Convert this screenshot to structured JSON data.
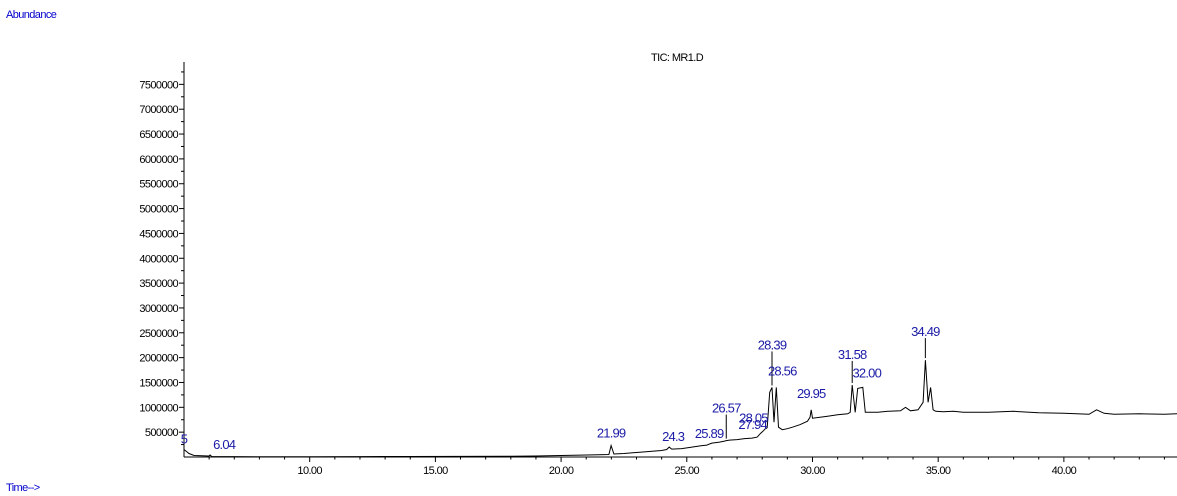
{
  "chart_data": {
    "type": "line",
    "title": "TIC: MR1.D",
    "ylabel": "Abundance",
    "xlabel": "Time-->",
    "xlim": [
      5.0,
      44.5
    ],
    "ylim": [
      0,
      7950000
    ],
    "grid": false,
    "yticks": [
      500000,
      1000000,
      1500000,
      2000000,
      2500000,
      3000000,
      3500000,
      4000000,
      4500000,
      5000000,
      5500000,
      6000000,
      6500000,
      7000000,
      7500000
    ],
    "ytick_labels": [
      "500000",
      "1000000",
      "1500000",
      "2000000",
      "2500000",
      "3000000",
      "3500000",
      "4000000",
      "4500000",
      "5000000",
      "5500000",
      "6000000",
      "6500000",
      "7000000",
      "7500000"
    ],
    "xticks": [
      10,
      15,
      20,
      25,
      30,
      35,
      40
    ],
    "xtick_labels": [
      "10.00",
      "15.00",
      "20.00",
      "25.00",
      "30.00",
      "35.00",
      "40.00"
    ],
    "series": [
      {
        "x": [
          5.0,
          5.1,
          5.2,
          5.4,
          6.0,
          6.04,
          6.1,
          8,
          10,
          12,
          14,
          16,
          18,
          19,
          20,
          21,
          21.5,
          21.9,
          21.99,
          22.1,
          22.5,
          23,
          23.5,
          24,
          24.2,
          24.3,
          24.4,
          24.8,
          25.2,
          25.6,
          25.8,
          25.89,
          26.0,
          26.3,
          26.5,
          26.57,
          26.7,
          27.0,
          27.3,
          27.6,
          27.8,
          27.94,
          28.05,
          28.1,
          28.2,
          28.3,
          28.39,
          28.47,
          28.56,
          28.65,
          28.8,
          29.0,
          29.2,
          29.5,
          29.8,
          29.9,
          29.95,
          30.0,
          30.3,
          30.6,
          31.0,
          31.4,
          31.5,
          31.58,
          31.7,
          31.8,
          32.0,
          32.1,
          32.3,
          32.6,
          33.0,
          33.5,
          33.7,
          33.9,
          34.2,
          34.4,
          34.49,
          34.6,
          34.7,
          34.8,
          34.9,
          35.2,
          35.6,
          36,
          37,
          38,
          39,
          40,
          41,
          41.3,
          41.6,
          42,
          43,
          44,
          44.5
        ],
        "values": [
          150000,
          110000,
          70000,
          30000,
          20000,
          40000,
          10000,
          5000,
          5000,
          8000,
          10000,
          12000,
          15000,
          20000,
          30000,
          40000,
          45000,
          50000,
          230000,
          60000,
          70000,
          90000,
          110000,
          130000,
          150000,
          200000,
          160000,
          170000,
          200000,
          230000,
          240000,
          260000,
          280000,
          300000,
          320000,
          330000,
          340000,
          350000,
          370000,
          380000,
          400000,
          480000,
          530000,
          560000,
          590000,
          1300000,
          1400000,
          700000,
          1400000,
          600000,
          550000,
          570000,
          600000,
          650000,
          720000,
          800000,
          950000,
          780000,
          800000,
          820000,
          850000,
          870000,
          900000,
          1450000,
          900000,
          1380000,
          1400000,
          900000,
          900000,
          900000,
          920000,
          930000,
          1000000,
          930000,
          950000,
          1100000,
          1950000,
          1100000,
          1400000,
          950000,
          920000,
          910000,
          920000,
          900000,
          900000,
          920000,
          890000,
          880000,
          860000,
          950000,
          880000,
          860000,
          870000,
          860000,
          870000
        ]
      }
    ],
    "peak_labels": [
      {
        "time": 5.0,
        "label": "5",
        "clipped": true
      },
      {
        "time": 6.04,
        "label": "6.04"
      },
      {
        "time": 21.99,
        "label": "21.99"
      },
      {
        "time": 24.3,
        "label": "24.3",
        "clipped": true
      },
      {
        "time": 25.89,
        "label": "25.89"
      },
      {
        "time": 26.57,
        "label": "26.57"
      },
      {
        "time": 27.94,
        "label": "27.94"
      },
      {
        "time": 28.05,
        "label": "28.05"
      },
      {
        "time": 28.39,
        "label": "28.39"
      },
      {
        "time": 28.56,
        "label": "28.56"
      },
      {
        "time": 29.95,
        "label": "29.95"
      },
      {
        "time": 31.58,
        "label": "31.58"
      },
      {
        "time": 32.0,
        "label": "32.00"
      },
      {
        "time": 34.49,
        "label": "34.49"
      }
    ],
    "colors": {
      "trace": "#000000",
      "baseline_marks": "#cc0000",
      "peak_label": "#1a1aa6",
      "axis_title": "#0000cc"
    }
  }
}
